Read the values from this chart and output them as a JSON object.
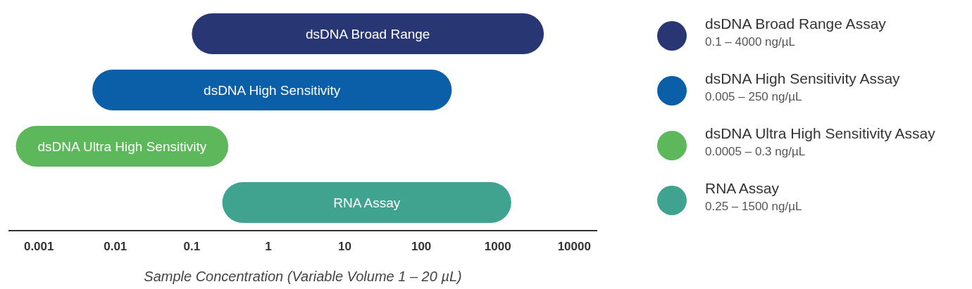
{
  "chart_data": {
    "type": "bar",
    "orientation": "horizontal",
    "log": "x",
    "xlabel": "Sample Concentration (Variable Volume 1 – 20 µL)",
    "categories": [
      "dsDNA Broad Range",
      "dsDNA High Sensitivity",
      "dsDNA Ultra High Sensitivity",
      "RNA Assay"
    ],
    "series": [
      {
        "name": "dsDNA Broad Range Assay",
        "color": "#283673",
        "base": [
          0.1,
          null,
          null,
          null
        ],
        "values": [
          3999.9,
          null,
          null,
          null
        ]
      },
      {
        "name": "dsDNA High Sensitivity Assay",
        "color": "#0b5ea8",
        "base": [
          null,
          0.005,
          null,
          null
        ],
        "values": [
          null,
          249.995,
          null,
          null
        ]
      },
      {
        "name": "dsDNA Ultra High Sensitivity Assay",
        "color": "#5cb85a",
        "base": [
          null,
          null,
          0.0005,
          null
        ],
        "values": [
          null,
          null,
          0.2995,
          null
        ]
      },
      {
        "name": "RNA Assay",
        "color": "#3fa390",
        "base": [
          null,
          null,
          null,
          0.25
        ],
        "values": [
          null,
          null,
          null,
          1499.75
        ]
      }
    ],
    "annotations": [
      "0.1 – 4000 ng/µL",
      "0.005 – 250 ng/µL",
      "0.0005 – 0.3 ng/µL",
      "0.25 – 1500 ng/µL"
    ],
    "xlim": [
      0.0004,
      20000
    ],
    "xticks": [
      0.001,
      0.01,
      0.1,
      1,
      10,
      100,
      1000,
      10000
    ],
    "tick_labels": "x",
    "legend": "right"
  }
}
